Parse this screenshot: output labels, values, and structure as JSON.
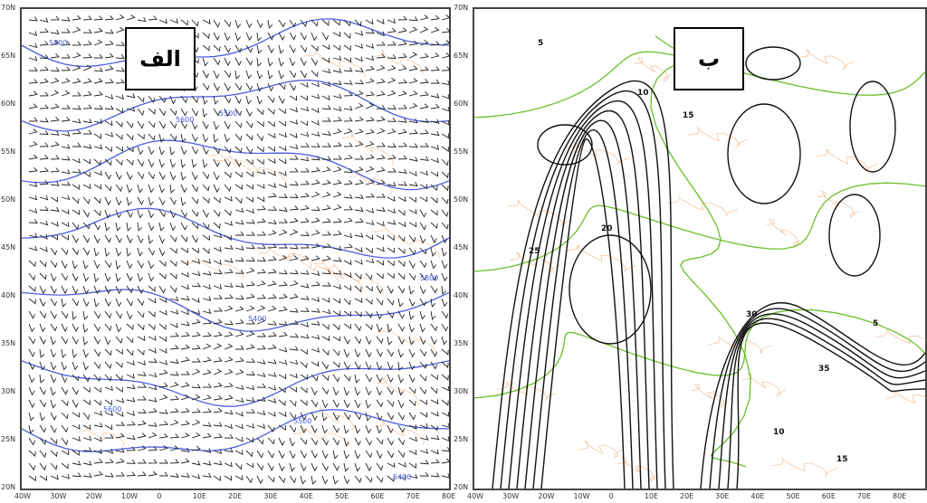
{
  "panels": [
    {
      "label": "الف",
      "content": "wind barbs with blue geopotential height contours",
      "contour_color": "#4a5ee0",
      "contour_labels": [
        "5800",
        "5600",
        "5500",
        "5400"
      ],
      "x_ticks": [
        "40W",
        "30W",
        "20W",
        "10W",
        "0",
        "10E",
        "20E",
        "30E",
        "40E",
        "50E",
        "60E",
        "70E",
        "80E"
      ],
      "y_ticks": [
        "70N",
        "65N",
        "60N",
        "55N",
        "50N",
        "45N",
        "40N",
        "35N",
        "30N",
        "25N",
        "20N"
      ]
    },
    {
      "label": "ب",
      "content": "black isotach contours with green height contours",
      "contour_color": "#111111",
      "height_color": "#6bbf2a",
      "contour_labels": [
        "5",
        "10",
        "15",
        "20",
        "25",
        "30",
        "35"
      ],
      "x_ticks": [
        "40W",
        "30W",
        "20W",
        "10W",
        "0",
        "10E",
        "20E",
        "30E",
        "40E",
        "50E",
        "60E",
        "70E",
        "80E"
      ],
      "y_ticks": [
        "70N",
        "65N",
        "60N",
        "55N",
        "50N",
        "45N",
        "40N",
        "35N",
        "30N",
        "25N",
        "20N"
      ]
    }
  ],
  "coastline_color": "#e8a066"
}
